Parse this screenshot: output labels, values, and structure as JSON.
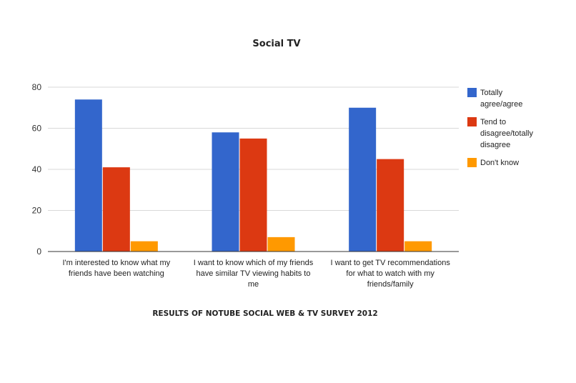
{
  "chart_data": {
    "type": "bar",
    "title": "Social TV",
    "caption": "RESULTS OF NOTUBE SOCIAL WEB & TV SURVEY 2012",
    "categories": [
      [
        "I'm interested to know what my",
        "friends have been watching"
      ],
      [
        "I want to know which of my friends",
        "have similar TV viewing habits to",
        "me"
      ],
      [
        "I want to get TV recommendations",
        "for what to watch with my",
        "friends/family"
      ]
    ],
    "series": [
      {
        "name": [
          "Totally",
          "agree/agree"
        ],
        "color": "#3366cc",
        "values": [
          74,
          58,
          70
        ]
      },
      {
        "name": [
          "Tend to",
          "disagree/totally",
          "disagree"
        ],
        "color": "#dc3912",
        "values": [
          41,
          55,
          45
        ]
      },
      {
        "name": [
          "Don't know"
        ],
        "color": "#ff9900",
        "values": [
          5,
          7,
          5
        ]
      }
    ],
    "ylim": [
      0,
      80
    ],
    "yticks": [
      0,
      20,
      40,
      60,
      80
    ],
    "grid": true,
    "legend": "right"
  }
}
